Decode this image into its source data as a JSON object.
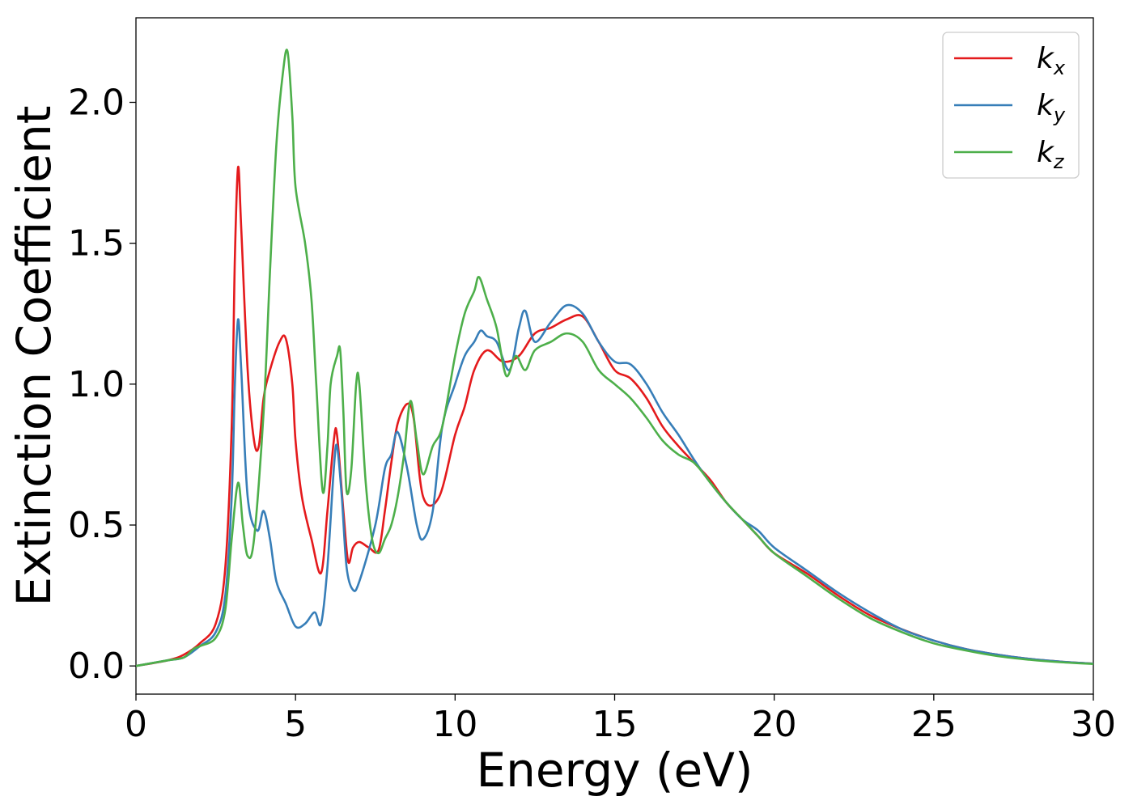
{
  "chart_data": {
    "type": "line",
    "title": "",
    "xlabel": "Energy (eV)",
    "ylabel": "Extinction Coefficient",
    "xlim": [
      0,
      30
    ],
    "ylim": [
      -0.1,
      2.3
    ],
    "xticks": [
      0,
      5,
      10,
      15,
      20,
      25,
      30
    ],
    "xtick_labels": [
      "0",
      "5",
      "10",
      "15",
      "20",
      "25",
      "30"
    ],
    "yticks": [
      0.0,
      0.5,
      1.0,
      1.5,
      2.0
    ],
    "ytick_labels": [
      "0.0",
      "0.5",
      "1.0",
      "1.5",
      "2.0"
    ],
    "grid": false,
    "legend_position": "top-right",
    "series": [
      {
        "name": "k",
        "subscript": "x",
        "color": "#e41a1c",
        "x": [
          0,
          1,
          1.5,
          2,
          2.5,
          2.8,
          3.0,
          3.1,
          3.2,
          3.3,
          3.5,
          3.7,
          3.85,
          4.0,
          4.2,
          4.5,
          4.7,
          4.9,
          5.0,
          5.2,
          5.5,
          5.8,
          6.0,
          6.2,
          6.3,
          6.5,
          6.65,
          6.8,
          7.0,
          7.3,
          7.6,
          7.8,
          8.0,
          8.2,
          8.5,
          8.7,
          9.0,
          9.5,
          10.0,
          10.3,
          10.6,
          11.0,
          11.5,
          12.0,
          12.5,
          13.0,
          13.5,
          14.0,
          14.5,
          15.0,
          15.5,
          16.0,
          16.5,
          17.0,
          17.5,
          18.0,
          18.5,
          19.0,
          19.5,
          20.0,
          21.0,
          22.0,
          23.0,
          24.0,
          25.0,
          26.0,
          27.0,
          28.0,
          29.0,
          30.0
        ],
        "values": [
          0,
          0.02,
          0.04,
          0.08,
          0.15,
          0.35,
          0.85,
          1.45,
          1.77,
          1.55,
          1.05,
          0.8,
          0.78,
          0.95,
          1.05,
          1.15,
          1.16,
          1.0,
          0.8,
          0.6,
          0.45,
          0.33,
          0.55,
          0.8,
          0.82,
          0.55,
          0.37,
          0.42,
          0.44,
          0.42,
          0.41,
          0.55,
          0.72,
          0.86,
          0.93,
          0.88,
          0.6,
          0.6,
          0.82,
          0.92,
          1.05,
          1.12,
          1.08,
          1.1,
          1.18,
          1.2,
          1.23,
          1.24,
          1.15,
          1.05,
          1.02,
          0.95,
          0.85,
          0.78,
          0.72,
          0.66,
          0.58,
          0.52,
          0.46,
          0.4,
          0.33,
          0.25,
          0.18,
          0.13,
          0.09,
          0.06,
          0.04,
          0.025,
          0.015,
          0.008
        ]
      },
      {
        "name": "k",
        "subscript": "y",
        "color": "#377eb8",
        "x": [
          0,
          1,
          1.5,
          2,
          2.5,
          2.8,
          3.0,
          3.1,
          3.2,
          3.3,
          3.5,
          3.8,
          4.0,
          4.2,
          4.4,
          4.7,
          5.0,
          5.3,
          5.6,
          5.8,
          6.0,
          6.2,
          6.3,
          6.45,
          6.6,
          6.8,
          7.0,
          7.5,
          7.8,
          8.0,
          8.2,
          8.5,
          8.8,
          9.0,
          9.3,
          9.6,
          10.0,
          10.3,
          10.6,
          10.8,
          11.0,
          11.3,
          11.7,
          12.0,
          12.2,
          12.5,
          13.0,
          13.5,
          14.0,
          14.5,
          15.0,
          15.5,
          16.0,
          16.5,
          17.0,
          17.5,
          18.0,
          18.5,
          19.0,
          19.5,
          20.0,
          21.0,
          22.0,
          23.0,
          24.0,
          25.0,
          26.0,
          27.0,
          28.0,
          29.0,
          30.0
        ],
        "values": [
          0,
          0.02,
          0.03,
          0.07,
          0.12,
          0.25,
          0.6,
          1.0,
          1.23,
          1.05,
          0.6,
          0.48,
          0.55,
          0.45,
          0.3,
          0.22,
          0.14,
          0.15,
          0.19,
          0.15,
          0.35,
          0.7,
          0.78,
          0.6,
          0.35,
          0.27,
          0.3,
          0.5,
          0.7,
          0.75,
          0.83,
          0.7,
          0.5,
          0.45,
          0.55,
          0.85,
          1.0,
          1.1,
          1.15,
          1.19,
          1.17,
          1.15,
          1.05,
          1.2,
          1.26,
          1.15,
          1.22,
          1.28,
          1.25,
          1.15,
          1.08,
          1.07,
          1.0,
          0.9,
          0.82,
          0.73,
          0.65,
          0.58,
          0.52,
          0.48,
          0.42,
          0.34,
          0.26,
          0.19,
          0.13,
          0.09,
          0.06,
          0.04,
          0.025,
          0.015,
          0.008
        ]
      },
      {
        "name": "k",
        "subscript": "z",
        "color": "#4daf4a",
        "x": [
          0,
          1,
          1.5,
          1.8,
          2.0,
          2.5,
          2.8,
          3.0,
          3.2,
          3.35,
          3.5,
          3.7,
          4.0,
          4.2,
          4.4,
          4.6,
          4.75,
          4.9,
          5.0,
          5.3,
          5.5,
          5.65,
          5.85,
          6.0,
          6.1,
          6.3,
          6.4,
          6.5,
          6.6,
          6.75,
          6.9,
          7.0,
          7.2,
          7.4,
          7.6,
          7.8,
          8.0,
          8.2,
          8.4,
          8.6,
          8.8,
          9.0,
          9.3,
          9.6,
          10.0,
          10.3,
          10.6,
          10.75,
          11.0,
          11.3,
          11.6,
          11.9,
          12.2,
          12.5,
          13.0,
          13.5,
          14.0,
          14.5,
          15.0,
          15.5,
          16.0,
          16.5,
          17.0,
          17.5,
          18.0,
          18.5,
          19.0,
          19.5,
          20.0,
          21.0,
          22.0,
          23.0,
          24.0,
          25.0,
          26.0,
          27.0,
          28.0,
          29.0,
          30.0
        ],
        "values": [
          0,
          0.02,
          0.03,
          0.06,
          0.07,
          0.1,
          0.2,
          0.45,
          0.65,
          0.5,
          0.39,
          0.45,
          0.9,
          1.4,
          1.85,
          2.1,
          2.18,
          1.95,
          1.7,
          1.5,
          1.3,
          1.0,
          0.62,
          0.78,
          1.0,
          1.1,
          1.12,
          0.9,
          0.62,
          0.7,
          1.0,
          1.0,
          0.65,
          0.45,
          0.4,
          0.45,
          0.5,
          0.6,
          0.75,
          0.94,
          0.8,
          0.68,
          0.78,
          0.85,
          1.1,
          1.25,
          1.33,
          1.38,
          1.3,
          1.2,
          1.03,
          1.1,
          1.05,
          1.12,
          1.15,
          1.18,
          1.15,
          1.05,
          1.0,
          0.95,
          0.88,
          0.8,
          0.75,
          0.72,
          0.65,
          0.58,
          0.52,
          0.46,
          0.4,
          0.32,
          0.24,
          0.17,
          0.12,
          0.08,
          0.055,
          0.035,
          0.022,
          0.013,
          0.007
        ]
      }
    ]
  }
}
